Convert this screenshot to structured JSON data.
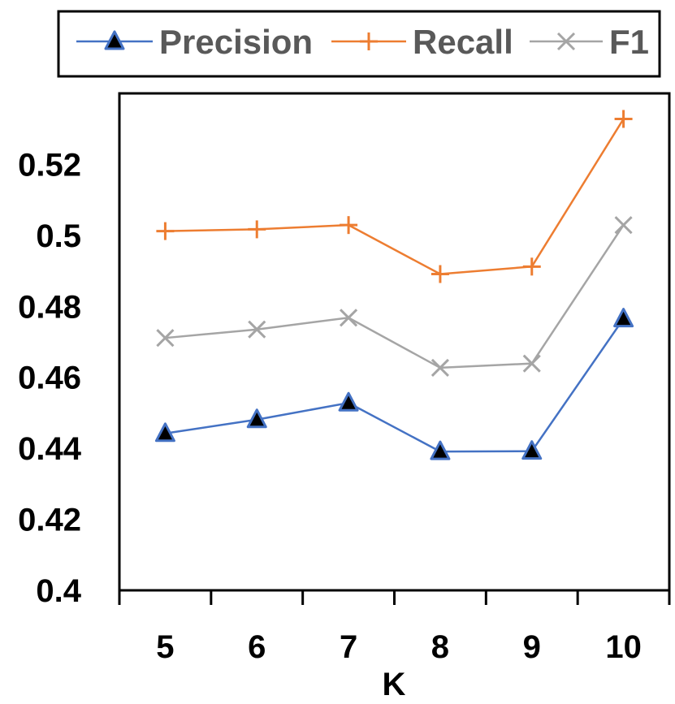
{
  "chart_data": {
    "type": "line",
    "title": "",
    "xlabel": "K",
    "ylabel": "",
    "categories": [
      "5",
      "6",
      "7",
      "8",
      "9",
      "10"
    ],
    "ylim": [
      0.4,
      0.54
    ],
    "yticks": [
      0.4,
      0.42,
      0.44,
      0.46,
      0.48,
      0.5,
      0.52
    ],
    "ytick_labels": [
      "0.4",
      "0.42",
      "0.44",
      "0.46",
      "0.48",
      "0.5",
      "0.52"
    ],
    "grid": false,
    "legend_position": "top",
    "series": [
      {
        "name": "Precision",
        "color": "#4472C4",
        "marker": "triangle",
        "values": [
          0.4442,
          0.4481,
          0.4528,
          0.4391,
          0.4392,
          0.4765
        ]
      },
      {
        "name": "Recall",
        "color": "#ED7D31",
        "marker": "plus",
        "values": [
          0.5012,
          0.5017,
          0.5029,
          0.4891,
          0.4912,
          0.5328
        ]
      },
      {
        "name": "F1",
        "color": "#A5A5A5",
        "marker": "x",
        "values": [
          0.4711,
          0.4735,
          0.4768,
          0.4627,
          0.4639,
          0.5029
        ]
      }
    ]
  }
}
